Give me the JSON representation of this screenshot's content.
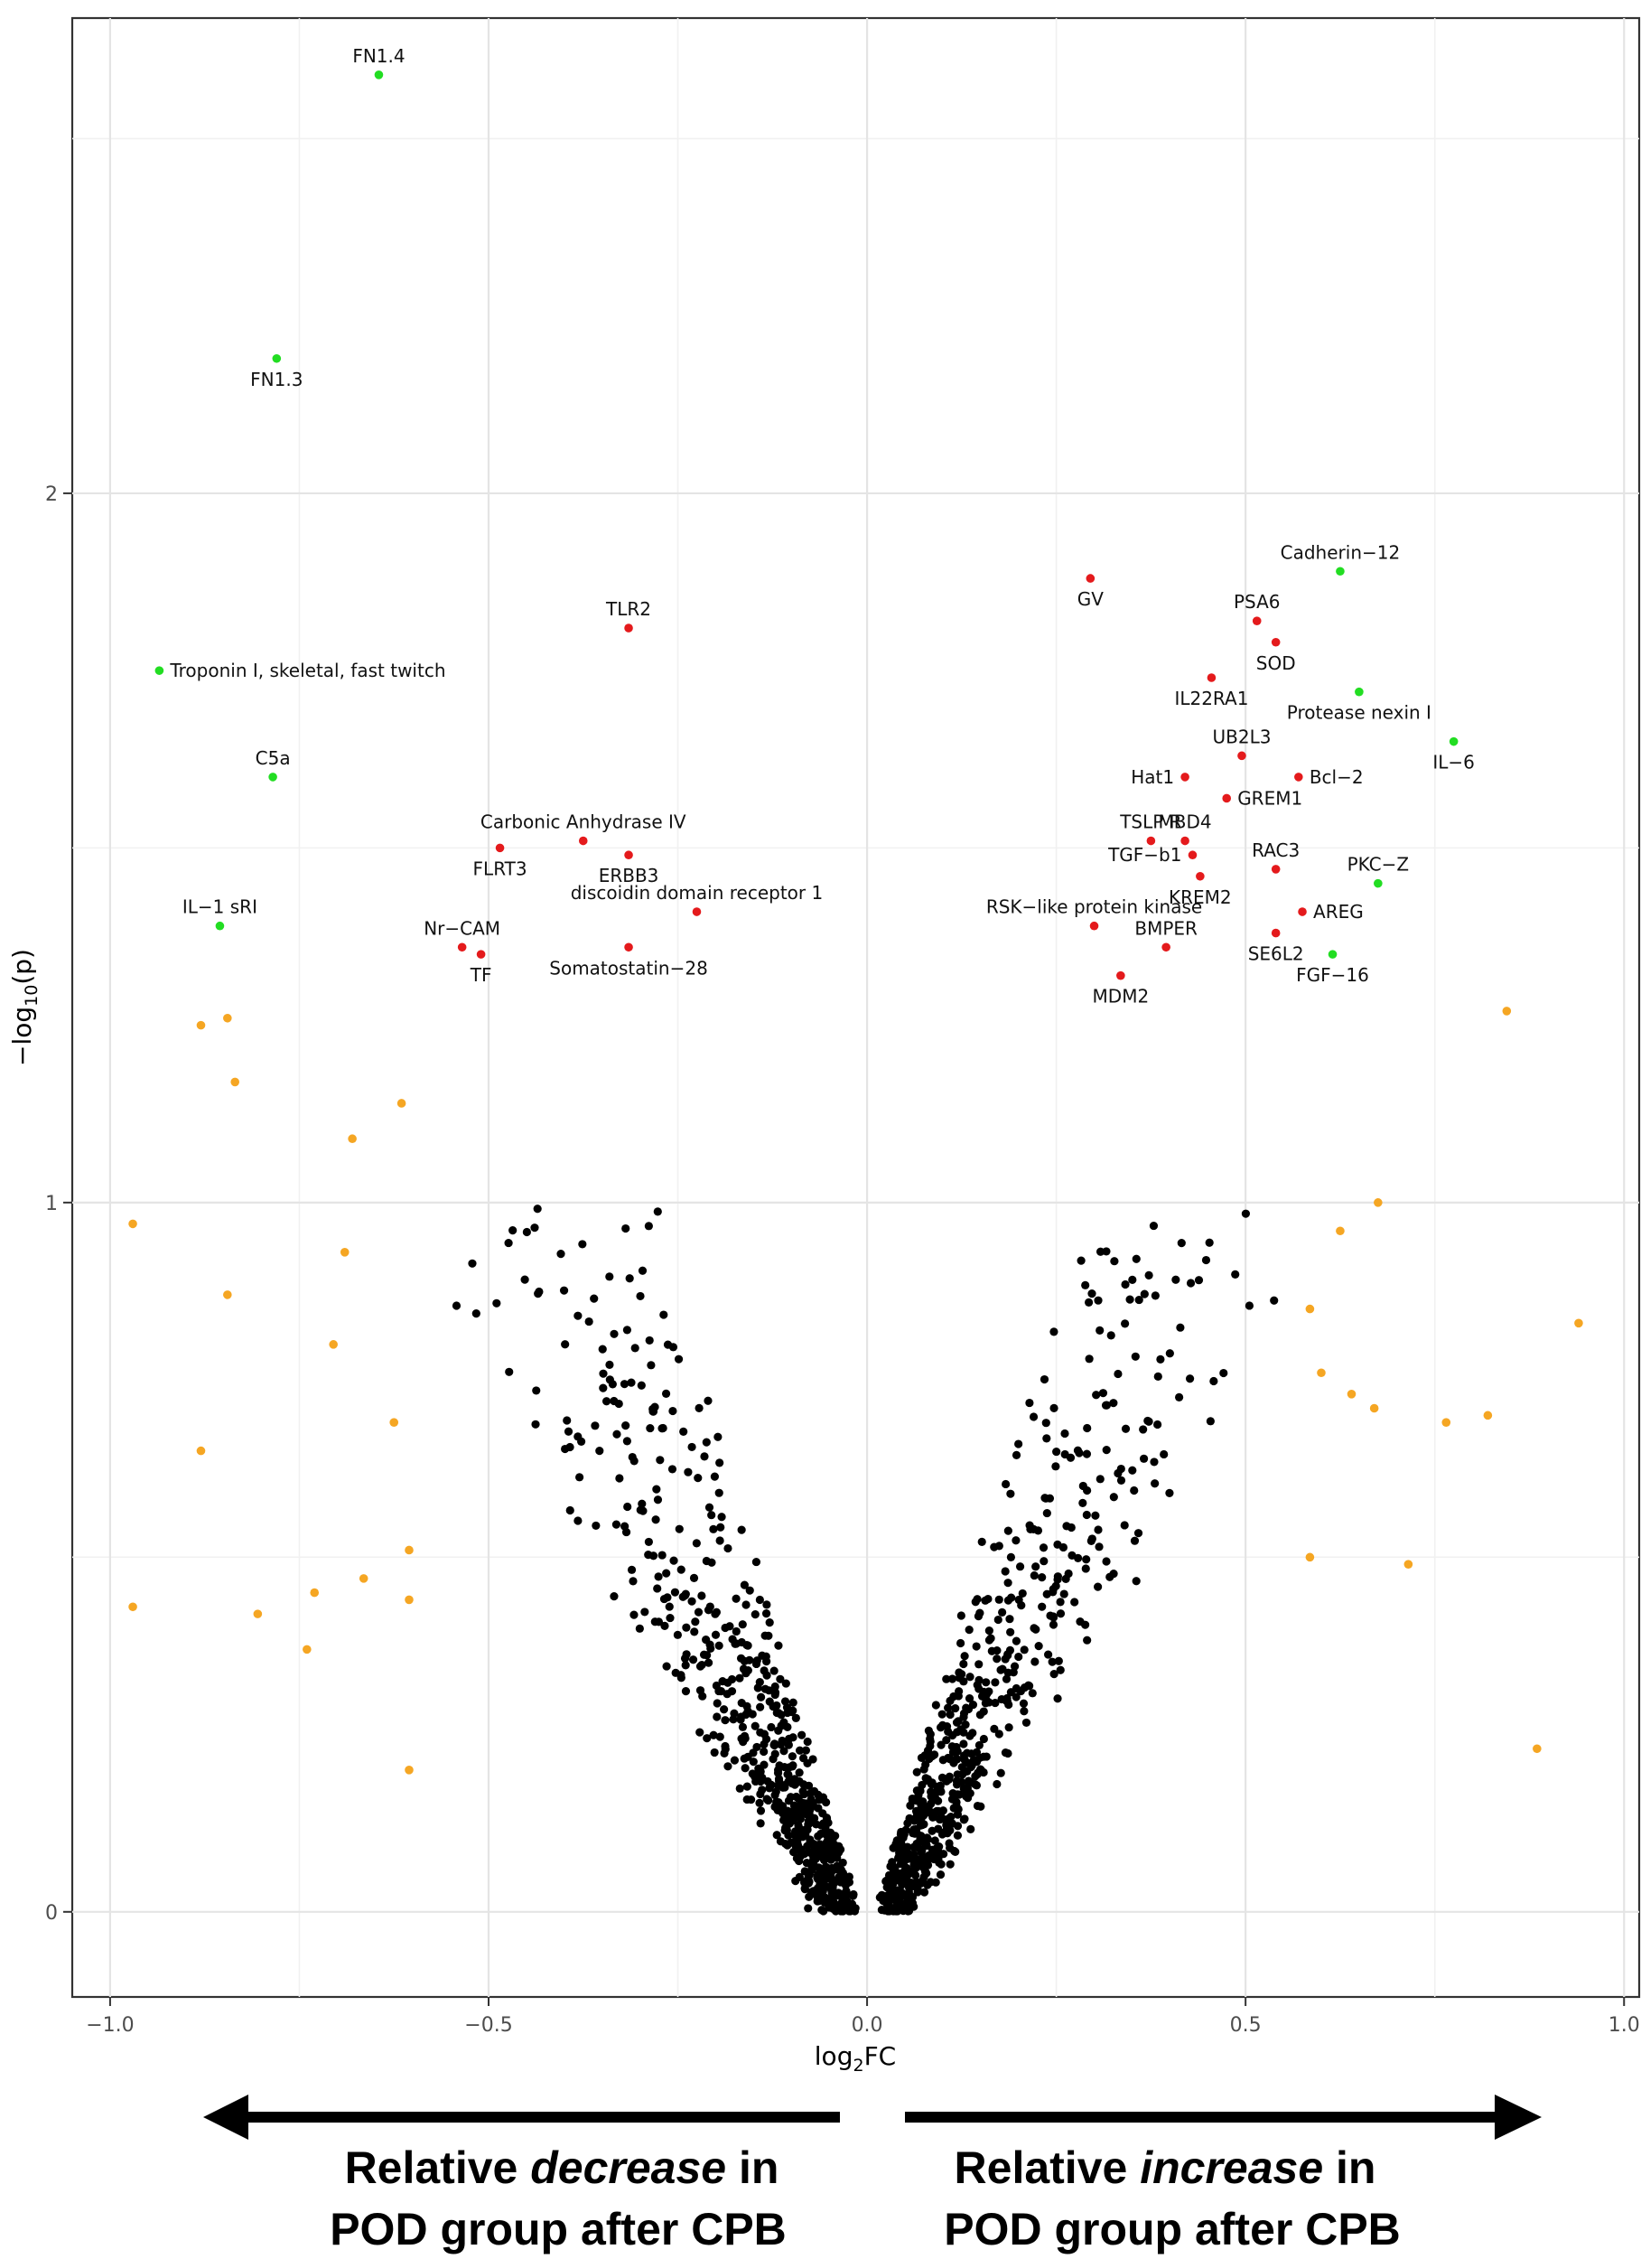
{
  "chart_data": {
    "type": "scatter",
    "xlabel": "log2FC",
    "ylabel": "-log10(p)",
    "xlim": [
      -1.05,
      1.02
    ],
    "ylim": [
      -0.12,
      2.67
    ],
    "x_ticks": [
      -1.0,
      -0.5,
      0.0,
      0.5,
      1.0
    ],
    "x_tick_labels": [
      "−1.0",
      "−0.5",
      "0.0",
      "0.5",
      "1.0"
    ],
    "y_ticks": [
      0,
      1,
      2
    ],
    "y_tick_labels": [
      "0",
      "1",
      "2"
    ],
    "grid": true,
    "legend": "none",
    "colors": {
      "green": "#22dd22",
      "red": "#e41a1c",
      "orange": "#f5a623",
      "black": "#000000"
    },
    "labeled_points": [
      {
        "label": "FN1.4",
        "x": -0.645,
        "y": 2.59,
        "color": "green",
        "pos": "top"
      },
      {
        "label": "FN1.3",
        "x": -0.78,
        "y": 2.19,
        "color": "green",
        "pos": "bottom"
      },
      {
        "label": "Troponin I, skeletal, fast twitch",
        "x": -0.935,
        "y": 1.75,
        "color": "green",
        "pos": "right"
      },
      {
        "label": "C5a",
        "x": -0.785,
        "y": 1.6,
        "color": "green",
        "pos": "top"
      },
      {
        "label": "IL−1 sRI",
        "x": -0.855,
        "y": 1.39,
        "color": "green",
        "pos": "top"
      },
      {
        "label": "TLR2",
        "x": -0.315,
        "y": 1.81,
        "color": "red",
        "pos": "top"
      },
      {
        "label": "Carbonic Anhydrase IV",
        "x": -0.375,
        "y": 1.51,
        "color": "red",
        "pos": "top"
      },
      {
        "label": "FLRT3",
        "x": -0.485,
        "y": 1.5,
        "color": "red",
        "pos": "bottom"
      },
      {
        "label": "ERBB3",
        "x": -0.315,
        "y": 1.49,
        "color": "red",
        "pos": "bottom"
      },
      {
        "label": "discoidin domain receptor 1",
        "x": -0.225,
        "y": 1.41,
        "color": "red",
        "pos": "top"
      },
      {
        "label": "Nr−CAM",
        "x": -0.535,
        "y": 1.36,
        "color": "red",
        "pos": "top"
      },
      {
        "label": "TF",
        "x": -0.51,
        "y": 1.35,
        "color": "red",
        "pos": "bottom"
      },
      {
        "label": "Somatostatin−28",
        "x": -0.315,
        "y": 1.36,
        "color": "red",
        "pos": "bottom"
      },
      {
        "label": "GV",
        "x": 0.295,
        "y": 1.88,
        "color": "red",
        "pos": "bottom"
      },
      {
        "label": "PSA6",
        "x": 0.515,
        "y": 1.82,
        "color": "red",
        "pos": "top"
      },
      {
        "label": "SOD",
        "x": 0.54,
        "y": 1.79,
        "color": "red",
        "pos": "bottom"
      },
      {
        "label": "IL22RA1",
        "x": 0.455,
        "y": 1.74,
        "color": "red",
        "pos": "bottom"
      },
      {
        "label": "UB2L3",
        "x": 0.495,
        "y": 1.63,
        "color": "red",
        "pos": "top"
      },
      {
        "label": "Hat1",
        "x": 0.42,
        "y": 1.6,
        "color": "red",
        "pos": "left"
      },
      {
        "label": "Bcl−2",
        "x": 0.57,
        "y": 1.6,
        "color": "red",
        "pos": "right"
      },
      {
        "label": "GREM1",
        "x": 0.475,
        "y": 1.57,
        "color": "red",
        "pos": "right"
      },
      {
        "label": "TSLP R",
        "x": 0.375,
        "y": 1.51,
        "color": "red",
        "pos": "top"
      },
      {
        "label": "MBD4",
        "x": 0.42,
        "y": 1.51,
        "color": "red",
        "pos": "top"
      },
      {
        "label": "TGF−b1",
        "x": 0.43,
        "y": 1.49,
        "color": "red",
        "pos": "left"
      },
      {
        "label": "RAC3",
        "x": 0.54,
        "y": 1.47,
        "color": "red",
        "pos": "top"
      },
      {
        "label": "KREM2",
        "x": 0.44,
        "y": 1.46,
        "color": "red",
        "pos": "bottom"
      },
      {
        "label": "AREG",
        "x": 0.575,
        "y": 1.41,
        "color": "red",
        "pos": "right"
      },
      {
        "label": "RSK−like protein kinase",
        "x": 0.3,
        "y": 1.39,
        "color": "red",
        "pos": "top"
      },
      {
        "label": "BMPER",
        "x": 0.395,
        "y": 1.36,
        "color": "red",
        "pos": "top"
      },
      {
        "label": "SE6L2",
        "x": 0.54,
        "y": 1.38,
        "color": "red",
        "pos": "bottom"
      },
      {
        "label": "MDM2",
        "x": 0.335,
        "y": 1.32,
        "color": "red",
        "pos": "bottom"
      },
      {
        "label": "Cadherin−12",
        "x": 0.625,
        "y": 1.89,
        "color": "green",
        "pos": "top"
      },
      {
        "label": "Protease nexin I",
        "x": 0.65,
        "y": 1.72,
        "color": "green",
        "pos": "bottom"
      },
      {
        "label": "IL−6",
        "x": 0.775,
        "y": 1.65,
        "color": "green",
        "pos": "bottom"
      },
      {
        "label": "PKC−Z",
        "x": 0.675,
        "y": 1.45,
        "color": "green",
        "pos": "top"
      },
      {
        "label": "FGF−16",
        "x": 0.615,
        "y": 1.35,
        "color": "green",
        "pos": "bottom"
      }
    ],
    "orange_points": [
      [
        -0.88,
        1.25
      ],
      [
        -0.845,
        1.26
      ],
      [
        -0.835,
        1.17
      ],
      [
        -0.615,
        1.14
      ],
      [
        -0.68,
        1.09
      ],
      [
        -0.97,
        0.97
      ],
      [
        -0.69,
        0.93
      ],
      [
        -0.845,
        0.87
      ],
      [
        -0.705,
        0.8
      ],
      [
        -0.625,
        0.69
      ],
      [
        -0.88,
        0.65
      ],
      [
        -0.605,
        0.51
      ],
      [
        -0.665,
        0.47
      ],
      [
        -0.73,
        0.45
      ],
      [
        -0.605,
        0.44
      ],
      [
        -0.97,
        0.43
      ],
      [
        -0.805,
        0.42
      ],
      [
        -0.74,
        0.37
      ],
      [
        -0.605,
        0.2
      ],
      [
        0.845,
        1.27
      ],
      [
        0.675,
        1.0
      ],
      [
        0.625,
        0.96
      ],
      [
        0.585,
        0.85
      ],
      [
        0.94,
        0.83
      ],
      [
        0.6,
        0.76
      ],
      [
        0.64,
        0.73
      ],
      [
        0.67,
        0.71
      ],
      [
        0.82,
        0.7
      ],
      [
        0.765,
        0.69
      ],
      [
        0.585,
        0.5
      ],
      [
        0.715,
        0.49
      ],
      [
        0.885,
        0.23
      ]
    ],
    "black_cloud": {
      "count_left": 650,
      "count_right": 650,
      "x_range": [
        -0.56,
        0.58
      ],
      "y_range": [
        0.0,
        1.3
      ],
      "shape": "V around x=0"
    }
  },
  "annotation": {
    "left_caption_line1_pre": "Relative ",
    "left_caption_line1_em": "decrease",
    "left_caption_line1_post": " in",
    "left_caption_line2": "POD group after CPB",
    "right_caption_line1_pre": "Relative ",
    "right_caption_line1_em": "increase",
    "right_caption_line1_post": " in",
    "right_caption_line2": "POD group after CPB"
  }
}
